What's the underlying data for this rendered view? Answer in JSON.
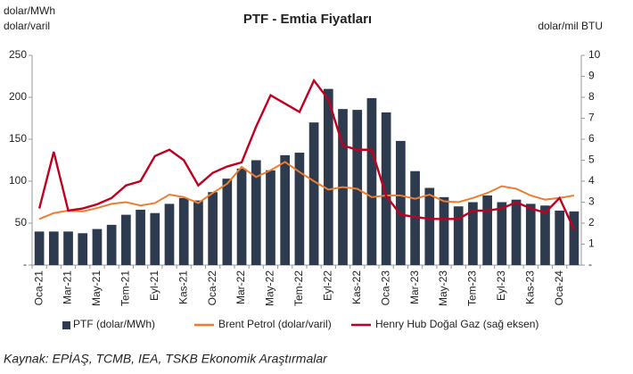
{
  "chart_data": {
    "type": "bar_line",
    "title": "PTF - Emtia Fiyatları",
    "y_label_lines": [
      "dolar/MWh",
      "dolar/varil"
    ],
    "y2_label": "dolar/mil BTU",
    "source": "Kaynak: EPİAŞ, TCMB, IEA, TSKB Ekonomik Araştırmalar",
    "categories": [
      "Oca-21",
      null,
      "Mar-21",
      null,
      "May-21",
      null,
      "Tem-21",
      null,
      "Eyl-21",
      null,
      "Kas-21",
      null,
      "Oca-22",
      null,
      "Mar-22",
      null,
      "May-22",
      null,
      "Tem-22",
      null,
      "Eyl-22",
      null,
      "Kas-22",
      null,
      "Oca-23",
      null,
      "Mar-23",
      null,
      "May-23",
      null,
      "Tem-23",
      null,
      "Eyl-23",
      null,
      "Kas-23",
      null,
      "Oca-24",
      null
    ],
    "series": [
      {
        "name": "PTF (dolar/MWh)",
        "kind": "bar",
        "color": "#2e3b4e",
        "values": [
          40,
          40,
          40,
          38,
          43,
          48,
          60,
          66,
          62,
          73,
          80,
          77,
          87,
          103,
          115,
          125,
          113,
          131,
          134,
          170,
          210,
          186,
          185,
          199,
          182,
          148,
          112,
          92,
          81,
          70,
          75,
          83,
          75,
          78,
          73,
          71,
          65,
          64
        ]
      },
      {
        "name": "Brent Petrol (dolar/varil)",
        "kind": "line",
        "color": "#ed7d31",
        "values": [
          55,
          62,
          65,
          64,
          68,
          73,
          75,
          71,
          74,
          84,
          81,
          74,
          86,
          97,
          117,
          105,
          113,
          123,
          111,
          100,
          90,
          93,
          91,
          81,
          83,
          83,
          79,
          84,
          76,
          75,
          80,
          86,
          94,
          91,
          83,
          78,
          80,
          83
        ]
      },
      {
        "name": "Henry Hub Doğal Gaz (sağ eksen)",
        "kind": "line",
        "axis": "y2",
        "color": "#c00020",
        "values": [
          2.7,
          5.4,
          2.6,
          2.7,
          2.9,
          3.2,
          3.8,
          4.0,
          5.2,
          5.5,
          5.0,
          3.8,
          4.4,
          4.7,
          4.9,
          6.6,
          8.1,
          7.7,
          7.3,
          8.8,
          7.9,
          5.7,
          5.5,
          5.5,
          3.3,
          2.4,
          2.3,
          2.2,
          2.2,
          2.2,
          2.6,
          2.6,
          2.7,
          3.0,
          2.7,
          2.5,
          3.2,
          1.7
        ]
      }
    ],
    "ylim": [
      0,
      250
    ],
    "yticks": [
      {
        "value": 0,
        "label": "-"
      },
      50,
      100,
      150,
      200,
      250
    ],
    "y2lim": [
      0,
      10
    ],
    "y2ticks": [
      {
        "value": 0,
        "label": "-"
      },
      1,
      2,
      3,
      4,
      5,
      6,
      7,
      8,
      9,
      10
    ],
    "legend": "bottom"
  }
}
